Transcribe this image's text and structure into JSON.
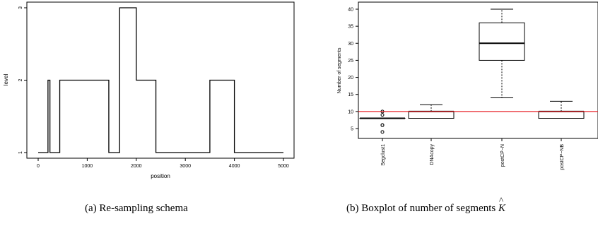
{
  "captions": {
    "a": {
      "label": "(a)",
      "text": "Re-sampling schema"
    },
    "b": {
      "label": "(b)",
      "text": "Boxplot of number of segments",
      "symbol": "K"
    }
  },
  "chart_data": [
    {
      "type": "line",
      "step": true,
      "xlabel": "position",
      "ylabel": "level",
      "xlim": [
        0,
        5000
      ],
      "ylim": [
        1,
        3
      ],
      "xticks": [
        0,
        1000,
        2000,
        3000,
        4000,
        5000
      ],
      "yticks": [
        1,
        2,
        3
      ],
      "color": "#000000",
      "segments": [
        {
          "x0": 0,
          "x1": 200,
          "y": 1
        },
        {
          "x0": 200,
          "x1": 240,
          "y": 2
        },
        {
          "x0": 240,
          "x1": 440,
          "y": 1
        },
        {
          "x0": 440,
          "x1": 1440,
          "y": 2
        },
        {
          "x0": 1440,
          "x1": 1660,
          "y": 1
        },
        {
          "x0": 1660,
          "x1": 2000,
          "y": 3
        },
        {
          "x0": 2000,
          "x1": 2400,
          "y": 2
        },
        {
          "x0": 2400,
          "x1": 3500,
          "y": 1
        },
        {
          "x0": 3500,
          "x1": 4000,
          "y": 2
        },
        {
          "x0": 4000,
          "x1": 5000,
          "y": 1
        }
      ]
    },
    {
      "type": "boxplot",
      "ylabel": "Number of segments",
      "ylim": [
        3,
        41
      ],
      "yticks": [
        5,
        10,
        15,
        20,
        25,
        30,
        35,
        40
      ],
      "reference_line": {
        "y": 10,
        "color": "#e8262b"
      },
      "categories": [
        "Segclust1",
        "DNAcopy",
        "postCP−N",
        "postCP−NB"
      ],
      "boxes": [
        {
          "whislo": 8,
          "q1": 8,
          "med": 8,
          "q3": 8,
          "whishi": 8,
          "outliers": [
            4,
            6,
            6,
            9,
            10
          ]
        },
        {
          "whislo": 8,
          "q1": 8,
          "med": 10,
          "q3": 10,
          "whishi": 12,
          "outliers": []
        },
        {
          "whislo": 14,
          "q1": 25,
          "med": 30,
          "q3": 36,
          "whishi": 40,
          "outliers": []
        },
        {
          "whislo": 8,
          "q1": 8,
          "med": 10,
          "q3": 10,
          "whishi": 13,
          "outliers": []
        }
      ]
    }
  ]
}
